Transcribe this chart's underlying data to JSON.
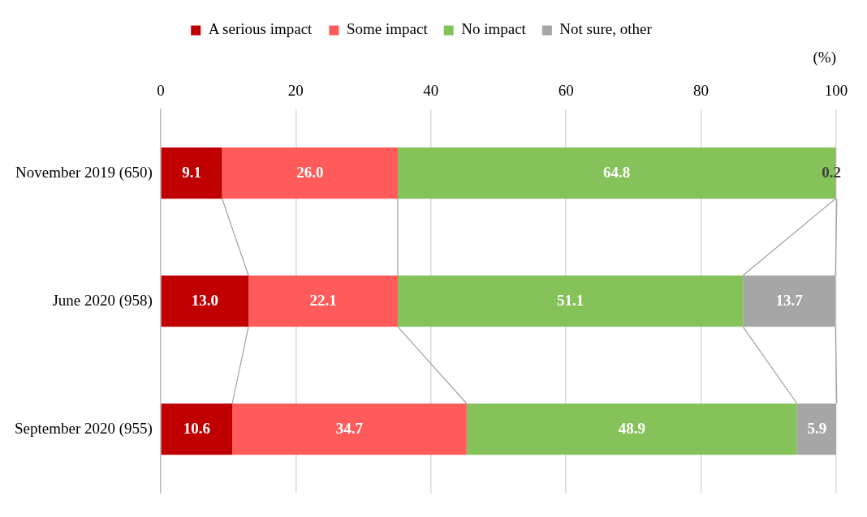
{
  "chart_data": {
    "type": "bar",
    "orientation": "horizontal",
    "stacked": true,
    "xlabel": "(%)",
    "categories": [
      "November 2019 (650)",
      "June 2020 (958)",
      "September 2020 (955)"
    ],
    "series": [
      {
        "name": "A serious impact",
        "color": "#c00000",
        "values": [
          9.1,
          13.0,
          10.6
        ],
        "value_labels": [
          "9.1",
          "13.0",
          "10.6"
        ]
      },
      {
        "name": "Some impact",
        "color": "#ff5b5b",
        "values": [
          26.0,
          22.1,
          34.7
        ],
        "value_labels": [
          "26.0",
          "22.1",
          "34.7"
        ]
      },
      {
        "name": "No impact",
        "color": "#86c25a",
        "values": [
          64.8,
          51.1,
          48.9
        ],
        "value_labels": [
          "64.8",
          "51.1",
          "48.9"
        ]
      },
      {
        "name": "Not sure, other",
        "color": "#a6a6a6",
        "values": [
          0.2,
          13.7,
          5.9
        ],
        "value_labels": [
          "0.2",
          "13.7",
          "5.9"
        ]
      }
    ],
    "xlim": [
      0,
      100
    ],
    "xticks": [
      0,
      20,
      40,
      60,
      80,
      100
    ],
    "grid": "x",
    "legend": "top"
  }
}
